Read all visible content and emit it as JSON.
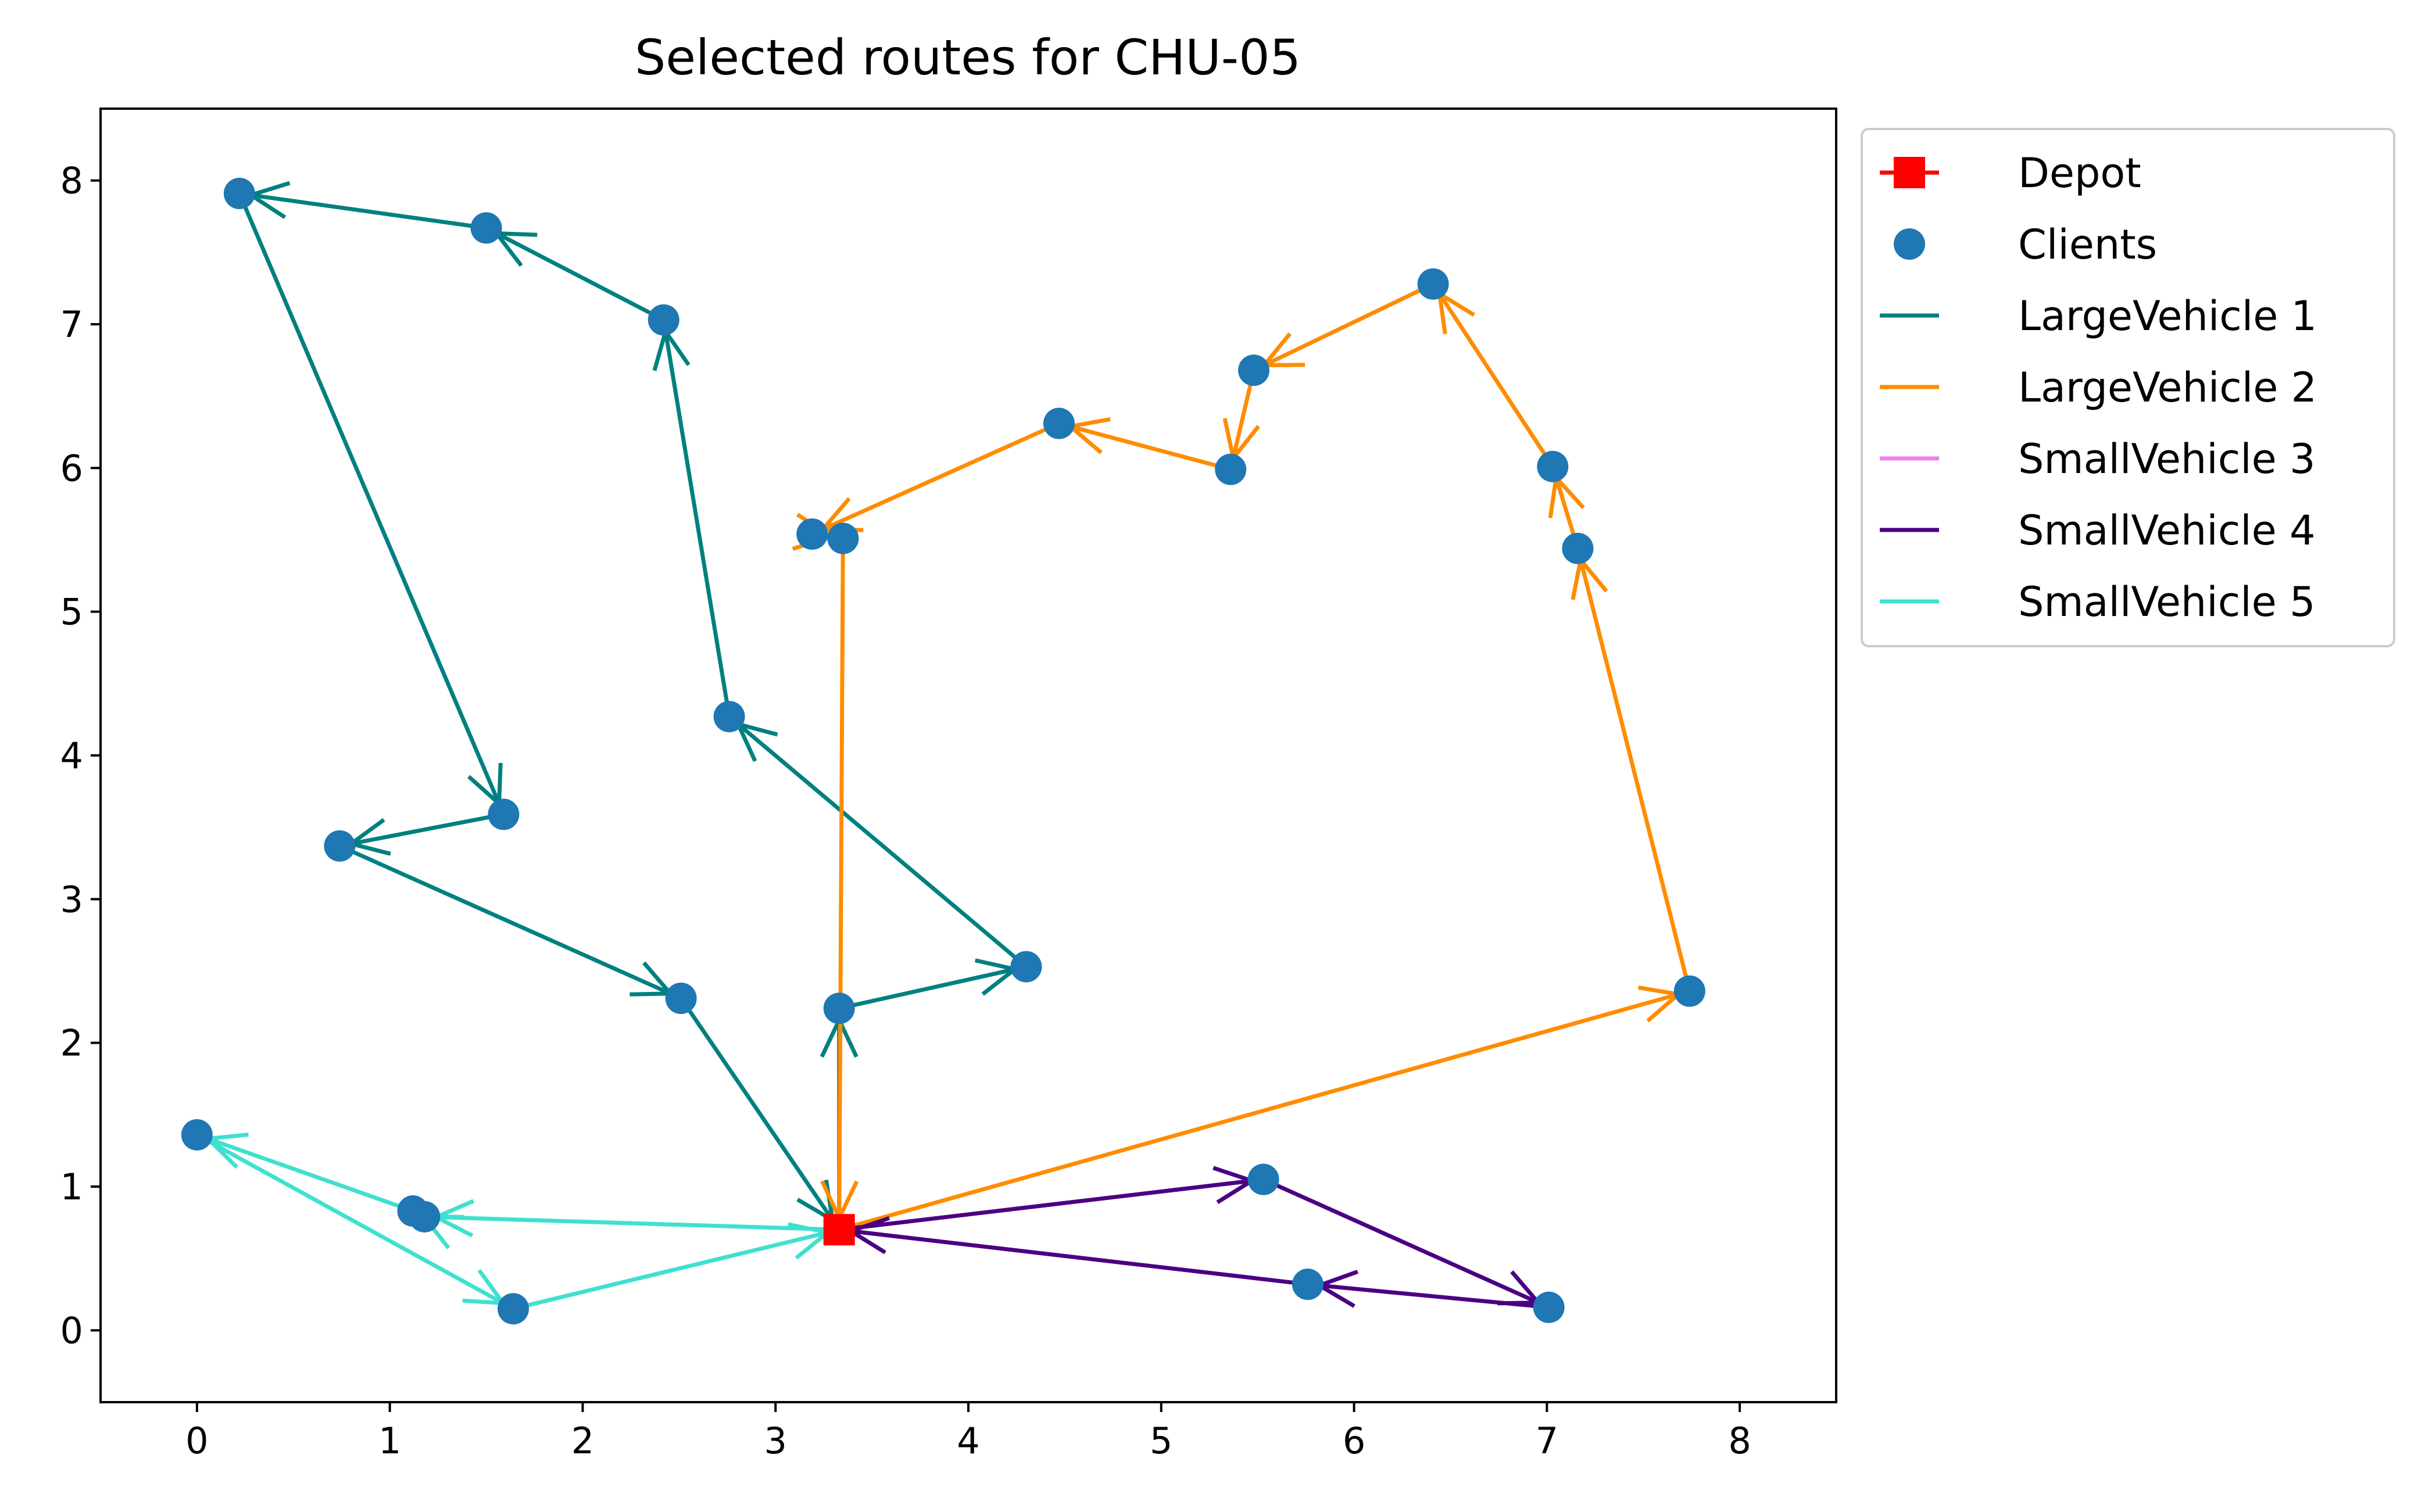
{
  "chart_data": {
    "type": "scatter",
    "title": "Selected routes for CHU-05",
    "xlabel": "",
    "ylabel": "",
    "xlim": [
      -0.5,
      8.5
    ],
    "ylim": [
      -0.5,
      8.5
    ],
    "x_ticks": [
      0,
      1,
      2,
      3,
      4,
      5,
      6,
      7,
      8
    ],
    "y_ticks": [
      0,
      1,
      2,
      3,
      4,
      5,
      6,
      7,
      8
    ],
    "grid": false,
    "legend_position": "outside-upper-right",
    "depot": {
      "name": "Depot",
      "x": 3.33,
      "y": 0.7,
      "color": "#ff0000"
    },
    "clients": {
      "name": "Clients",
      "color": "#1f77b4",
      "points": [
        [
          0.22,
          7.91
        ],
        [
          1.5,
          7.67
        ],
        [
          2.42,
          7.03
        ],
        [
          2.76,
          4.27
        ],
        [
          4.3,
          2.53
        ],
        [
          3.33,
          2.24
        ],
        [
          1.59,
          3.59
        ],
        [
          0.74,
          3.37
        ],
        [
          2.51,
          2.31
        ],
        [
          6.41,
          7.28
        ],
        [
          5.48,
          6.68
        ],
        [
          5.36,
          5.99
        ],
        [
          4.47,
          6.31
        ],
        [
          3.19,
          5.54
        ],
        [
          3.35,
          5.51
        ],
        [
          7.03,
          6.01
        ],
        [
          7.16,
          5.44
        ],
        [
          7.74,
          2.36
        ],
        [
          5.53,
          1.05
        ],
        [
          7.01,
          0.16
        ],
        [
          5.76,
          0.32
        ],
        [
          0.0,
          1.36
        ],
        [
          1.12,
          0.83
        ],
        [
          1.18,
          0.79
        ],
        [
          1.64,
          0.15
        ]
      ]
    },
    "series": [
      {
        "name": "LargeVehicle 1",
        "color": "#008080",
        "route": [
          [
            3.33,
            0.7
          ],
          [
            3.33,
            2.24
          ],
          [
            4.3,
            2.53
          ],
          [
            2.76,
            4.27
          ],
          [
            2.42,
            7.03
          ],
          [
            1.5,
            7.67
          ],
          [
            0.22,
            7.91
          ],
          [
            1.59,
            3.59
          ],
          [
            0.74,
            3.37
          ],
          [
            2.51,
            2.31
          ],
          [
            3.33,
            0.7
          ]
        ]
      },
      {
        "name": "LargeVehicle 2",
        "color": "#ff8c00",
        "route": [
          [
            3.33,
            0.7
          ],
          [
            7.74,
            2.36
          ],
          [
            7.16,
            5.44
          ],
          [
            7.03,
            6.01
          ],
          [
            6.41,
            7.28
          ],
          [
            5.48,
            6.68
          ],
          [
            5.36,
            5.99
          ],
          [
            4.47,
            6.31
          ],
          [
            3.19,
            5.54
          ],
          [
            3.35,
            5.51
          ],
          [
            3.33,
            0.7
          ]
        ]
      },
      {
        "name": "SmallVehicle 3",
        "color": "#ee82ee",
        "route": []
      },
      {
        "name": "SmallVehicle 4",
        "color": "#4b0082",
        "route": [
          [
            3.33,
            0.7
          ],
          [
            5.53,
            1.05
          ],
          [
            7.01,
            0.16
          ],
          [
            5.76,
            0.32
          ],
          [
            3.33,
            0.7
          ]
        ]
      },
      {
        "name": "SmallVehicle 5",
        "color": "#40e0d0",
        "route": [
          [
            3.33,
            0.7
          ],
          [
            1.18,
            0.79
          ],
          [
            1.12,
            0.83
          ],
          [
            0.0,
            1.36
          ],
          [
            1.64,
            0.15
          ],
          [
            3.33,
            0.7
          ]
        ]
      }
    ]
  }
}
